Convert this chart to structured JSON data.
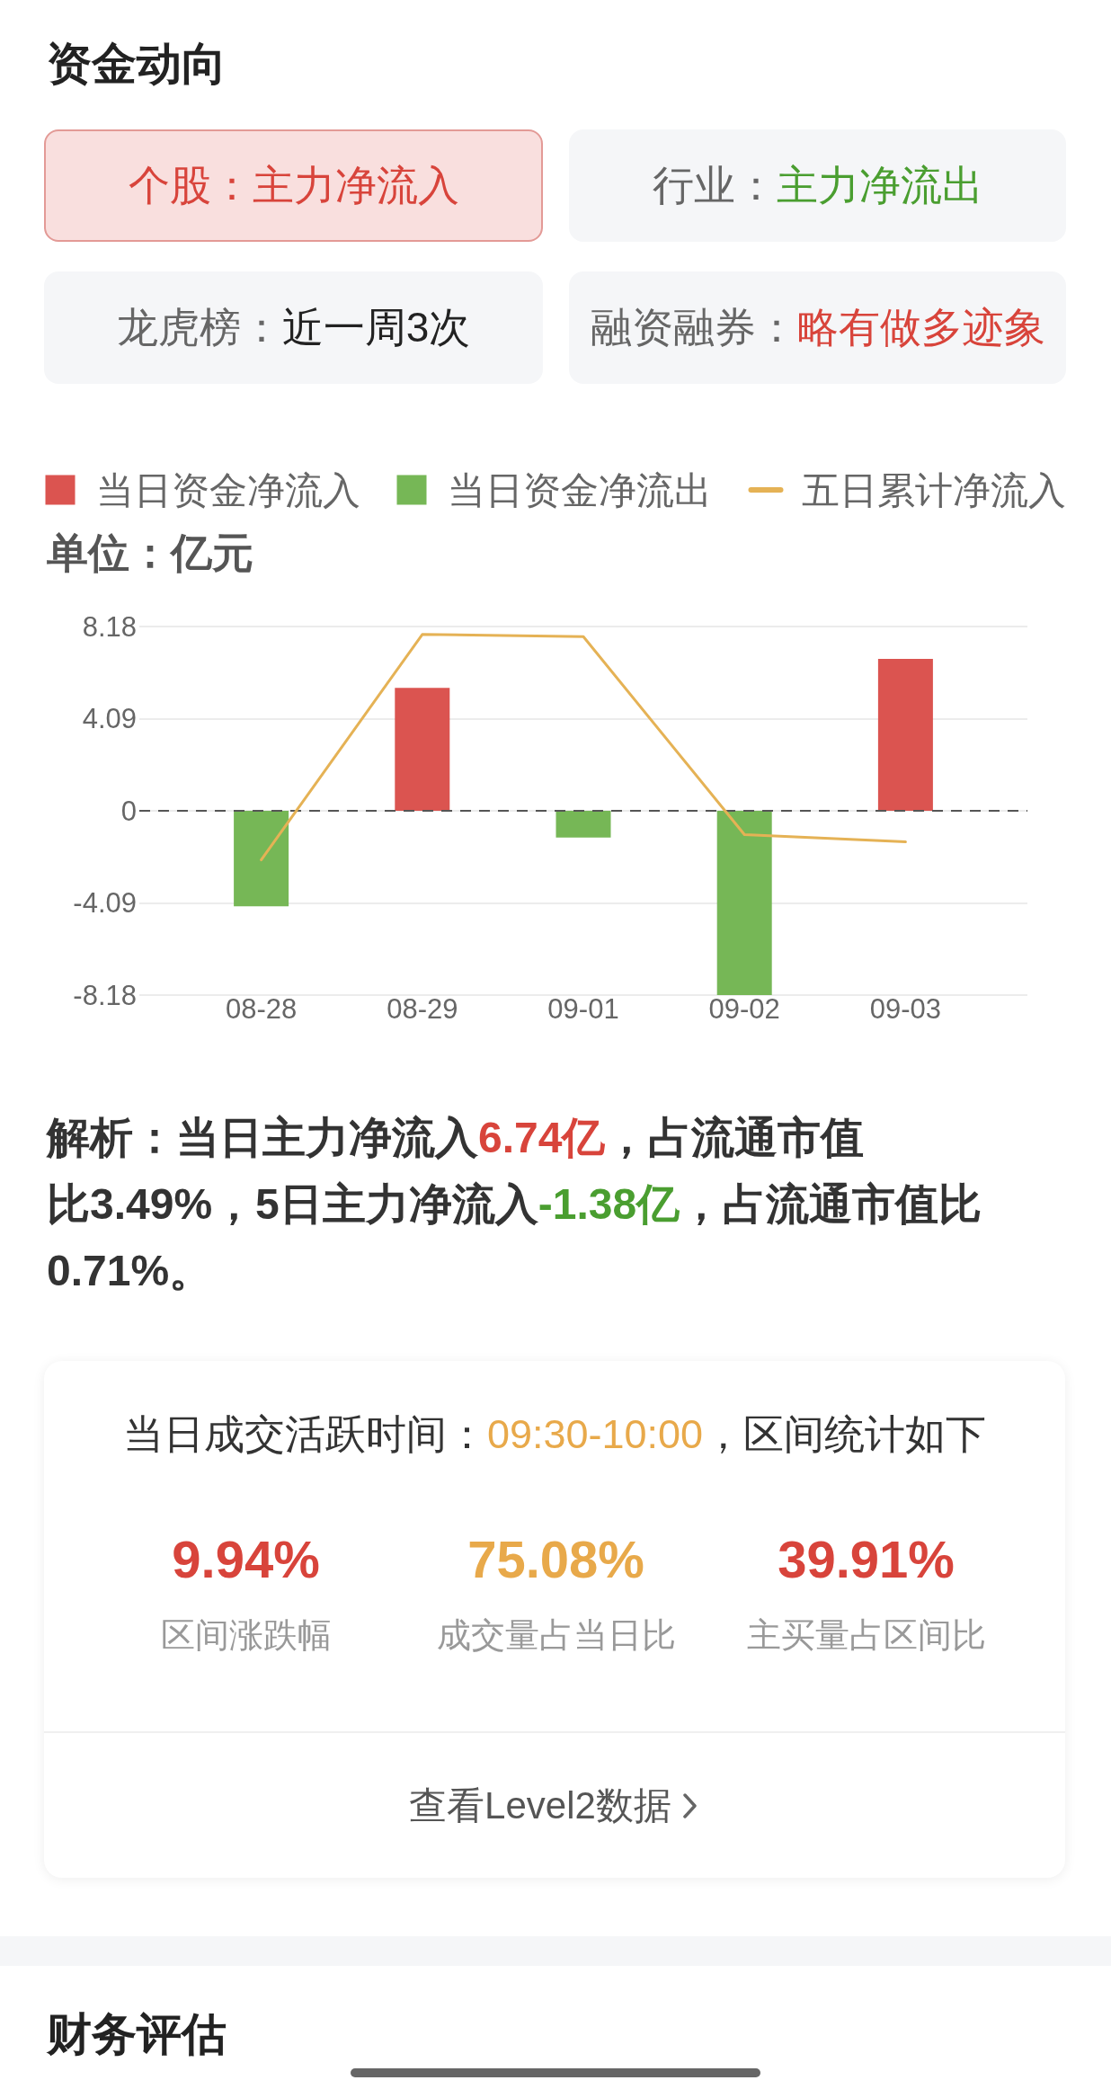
{
  "chart_data": {
    "type": "bar",
    "title": "资金动向",
    "ylabel": "单位：亿元",
    "categories": [
      "08-28",
      "08-29",
      "09-01",
      "09-02",
      "09-03"
    ],
    "series": [
      {
        "name": "当日资金净流入",
        "color": "#db5450",
        "values": [
          null,
          5.46,
          null,
          null,
          6.74
        ]
      },
      {
        "name": "当日资金净流出",
        "color": "#76b756",
        "values": [
          -4.24,
          null,
          -1.19,
          -8.18,
          null
        ]
      },
      {
        "name": "五日累计净流入",
        "type": "line",
        "color": "#e5b255",
        "marker": "none",
        "values": [
          -2.18,
          7.83,
          7.73,
          -1.06,
          -1.38
        ]
      }
    ],
    "ylim": [
      -8.18,
      8.18
    ],
    "yticks": [
      -8.18,
      -4.09,
      0,
      4.09,
      8.18
    ],
    "grid": "y",
    "legend": "top",
    "ref_lines": [
      {
        "axis": "y",
        "value": 0,
        "line_style": "dashed",
        "color": "#555555"
      }
    ],
    "annotations": [
      "个股：主力净流入",
      "行业：",
      "主力净流出",
      "龙虎榜：",
      "近一周3次",
      "融资融券：",
      "略有做多迹象",
      "解析：当日主力净流入",
      "6.74亿",
      "，占流通市值",
      "比3.49%，5日主力净流入",
      "-1.38亿",
      "，占流通市值比",
      "0.71%。",
      "当日成交活跃时间：",
      "09:30-10:00",
      "，区间统计如下",
      "9.94%",
      "区间涨跌幅",
      "75.08%",
      "成交量占当日比",
      "39.91%",
      "主买量占区间比",
      "查看Level2数据",
      "财务评估"
    ]
  }
}
